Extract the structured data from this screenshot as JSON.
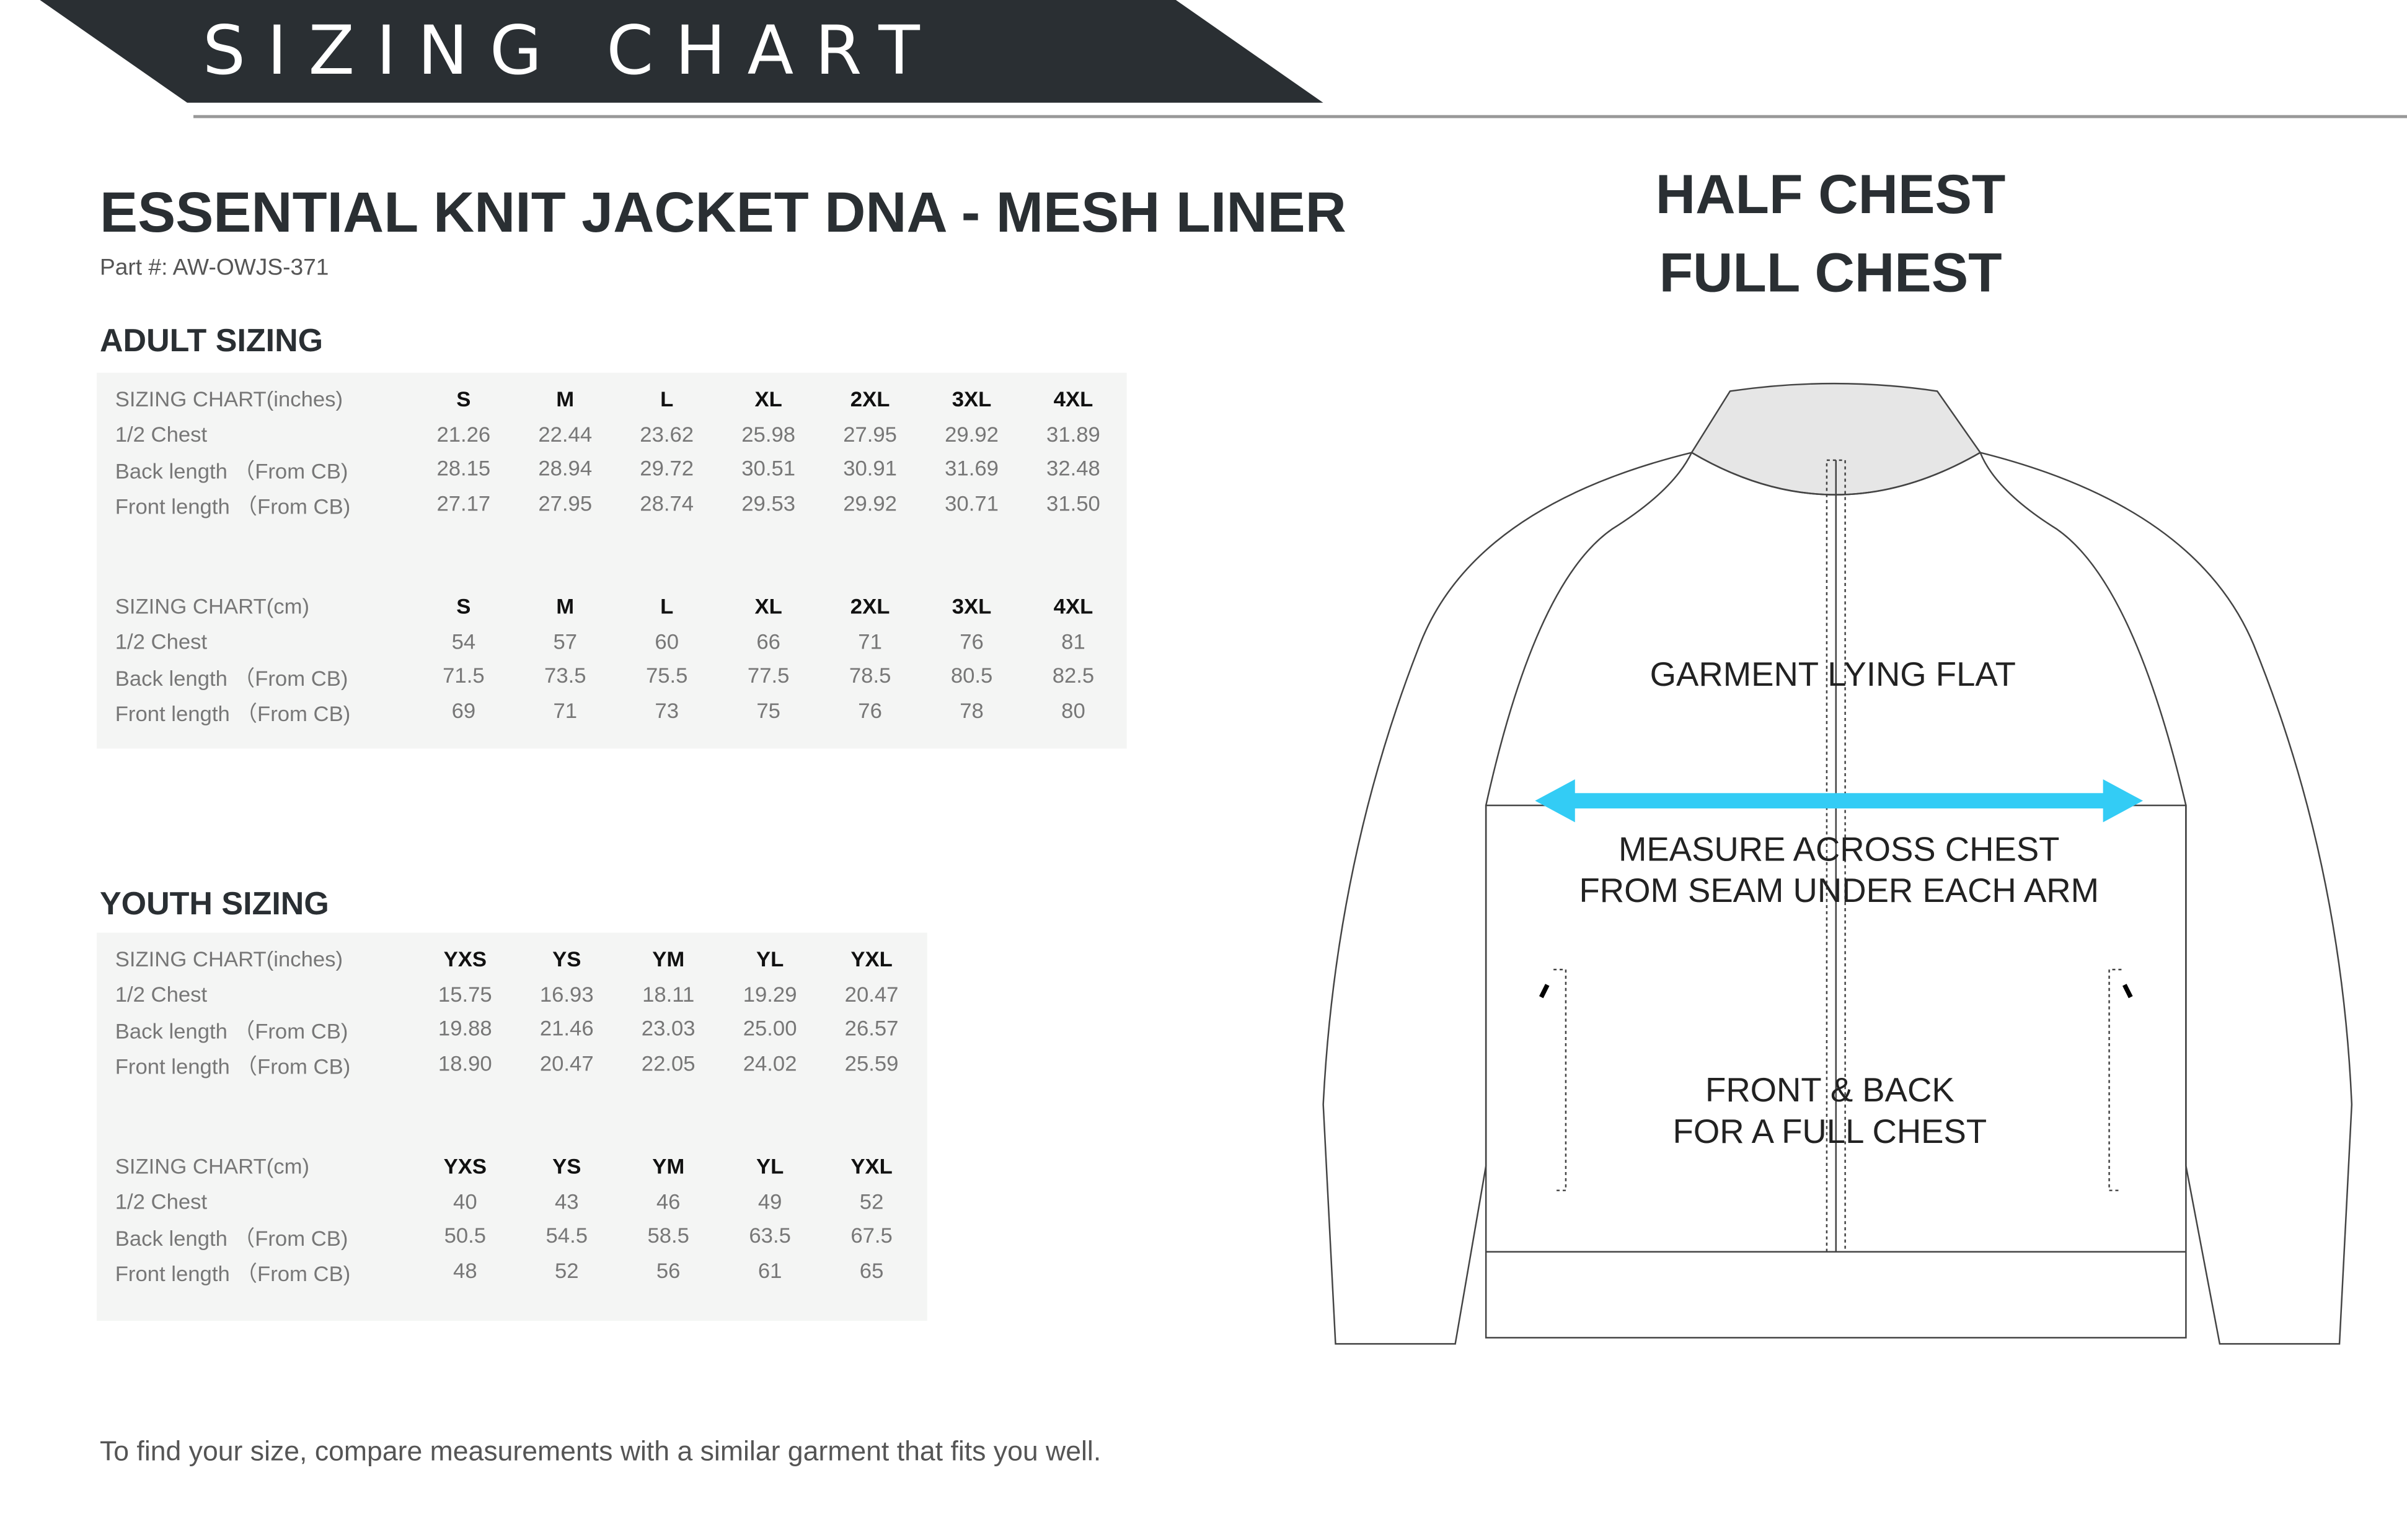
{
  "banner": {
    "title": "SIZING CHART"
  },
  "product": {
    "title": "ESSENTIAL KNIT JACKET DNA - MESH LINER",
    "part": "Part #: AW-OWJS-371"
  },
  "adult": {
    "heading": "ADULT SIZING",
    "sizes": [
      "S",
      "M",
      "L",
      "XL",
      "2XL",
      "3XL",
      "4XL"
    ],
    "inches": {
      "label": "SIZING CHART(inches)",
      "rows": [
        {
          "label": "1/2 Chest",
          "values": [
            "21.26",
            "22.44",
            "23.62",
            "25.98",
            "27.95",
            "29.92",
            "31.89"
          ]
        },
        {
          "label": "Back length （From CB)",
          "values": [
            "28.15",
            "28.94",
            "29.72",
            "30.51",
            "30.91",
            "31.69",
            "32.48"
          ]
        },
        {
          "label": "Front length （From CB)",
          "values": [
            "27.17",
            "27.95",
            "28.74",
            "29.53",
            "29.92",
            "30.71",
            "31.50"
          ]
        }
      ]
    },
    "cm": {
      "label": "SIZING CHART(cm)",
      "rows": [
        {
          "label": "1/2 Chest",
          "values": [
            "54",
            "57",
            "60",
            "66",
            "71",
            "76",
            "81"
          ]
        },
        {
          "label": "Back length （From CB)",
          "values": [
            "71.5",
            "73.5",
            "75.5",
            "77.5",
            "78.5",
            "80.5",
            "82.5"
          ]
        },
        {
          "label": "Front length （From CB)",
          "values": [
            "69",
            "71",
            "73",
            "75",
            "76",
            "78",
            "80"
          ]
        }
      ]
    }
  },
  "youth": {
    "heading": "YOUTH SIZING",
    "sizes": [
      "YXS",
      "YS",
      "YM",
      "YL",
      "YXL"
    ],
    "inches": {
      "label": "SIZING CHART(inches)",
      "rows": [
        {
          "label": "1/2 Chest",
          "values": [
            "15.75",
            "16.93",
            "18.11",
            "19.29",
            "20.47"
          ]
        },
        {
          "label": "Back length （From CB)",
          "values": [
            "19.88",
            "21.46",
            "23.03",
            "25.00",
            "26.57"
          ]
        },
        {
          "label": "Front length （From CB)",
          "values": [
            "18.90",
            "20.47",
            "22.05",
            "24.02",
            "25.59"
          ]
        }
      ]
    },
    "cm": {
      "label": "SIZING CHART(cm)",
      "rows": [
        {
          "label": "1/2 Chest",
          "values": [
            "40",
            "43",
            "46",
            "49",
            "52"
          ]
        },
        {
          "label": "Back length （From CB)",
          "values": [
            "50.5",
            "54.5",
            "58.5",
            "63.5",
            "67.5"
          ]
        },
        {
          "label": "Front length （From CB)",
          "values": [
            "48",
            "52",
            "56",
            "61",
            "65"
          ]
        }
      ]
    }
  },
  "diagram": {
    "title1": "HALF CHEST",
    "title2": "FULL CHEST",
    "note1": "GARMENT LYING FLAT",
    "note2a": "MEASURE ACROSS CHEST",
    "note2b": "FROM SEAM UNDER EACH ARM",
    "note3a": "FRONT & BACK",
    "note3b": "FOR A FULL CHEST",
    "arrow_color": "#33ccf5"
  },
  "footer": "To find your size, compare measurements with a similar garment that fits you well.",
  "colors": {
    "banner": "#2a2f33",
    "table_bg": "#f4f5f4"
  }
}
